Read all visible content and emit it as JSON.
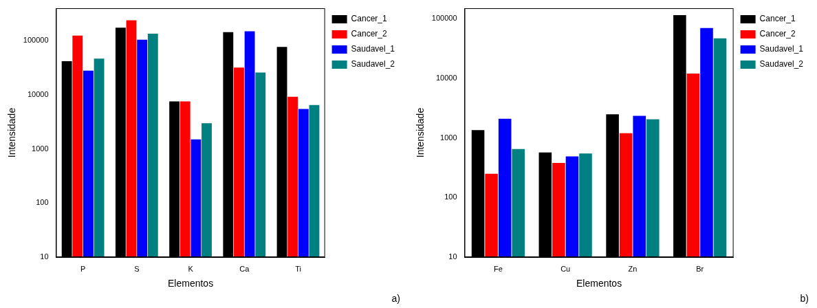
{
  "chart_data": [
    {
      "type": "bar",
      "annotation": "a)",
      "x_label": "Elementos",
      "y_label": "Intensidade",
      "categories": [
        "P",
        "S",
        "K",
        "Ca",
        "Ti"
      ],
      "series": [
        {
          "name": "Cancer_1",
          "color": "#000000",
          "values": [
            42000,
            175000,
            7600,
            145000,
            77000
          ]
        },
        {
          "name": "Cancer_2",
          "color": "#ff0000",
          "values": [
            125000,
            240000,
            7600,
            32000,
            9200
          ]
        },
        {
          "name": "Saudavel_1",
          "color": "#0000ff",
          "values": [
            28000,
            105000,
            1500,
            150000,
            5500
          ]
        },
        {
          "name": "Saudavel_2",
          "color": "#008080",
          "values": [
            47000,
            135000,
            3000,
            26000,
            6500
          ]
        }
      ],
      "ylim": [
        10,
        400000
      ],
      "yticks": [
        10,
        100,
        1000,
        10000,
        100000
      ],
      "log": "y",
      "grid": false,
      "legend": "upper right"
    },
    {
      "type": "bar",
      "annotation": "b)",
      "x_label": "Elementos",
      "y_label": "Intensidade",
      "categories": [
        "Fe",
        "Cu",
        "Zn",
        "Br"
      ],
      "series": [
        {
          "name": "Cancer_1",
          "color": "#000000",
          "values": [
            1350,
            570,
            2500,
            115000
          ]
        },
        {
          "name": "Cancer_2",
          "color": "#ff0000",
          "values": [
            250,
            380,
            1200,
            12000
          ]
        },
        {
          "name": "Saudavel_1",
          "color": "#0000ff",
          "values": [
            2100,
            490,
            2350,
            70000
          ]
        },
        {
          "name": "Saudavel_2",
          "color": "#008080",
          "values": [
            650,
            550,
            2050,
            47000
          ]
        }
      ],
      "ylim": [
        10,
        150000
      ],
      "yticks": [
        10,
        100,
        1000,
        10000,
        100000
      ],
      "log": "y",
      "grid": false,
      "legend": "upper right"
    }
  ]
}
